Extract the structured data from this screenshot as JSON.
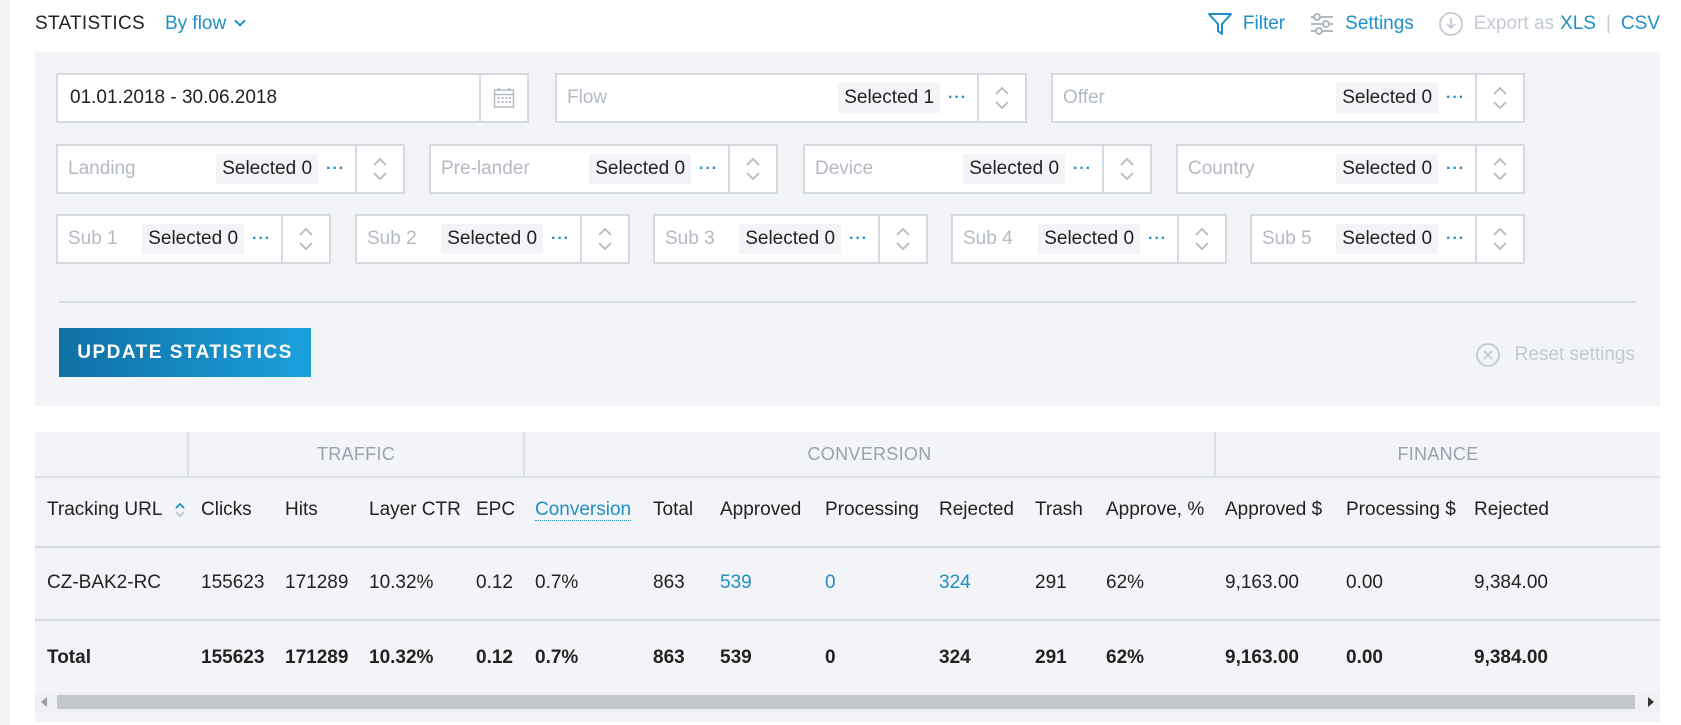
{
  "header": {
    "title": "STATISTICS",
    "group_by": "By flow",
    "filter_label": "Filter",
    "settings_label": "Settings",
    "export_label": "Export as",
    "export_xls": "XLS",
    "export_separator": "|",
    "export_csv": "CSV"
  },
  "filters": {
    "date_range": "01.01.2018 - 30.06.2018",
    "flow": {
      "placeholder": "Flow",
      "selected": "Selected 1"
    },
    "offer": {
      "placeholder": "Offer",
      "selected": "Selected 0"
    },
    "landing": {
      "placeholder": "Landing",
      "selected": "Selected 0"
    },
    "prelander": {
      "placeholder": "Pre-lander",
      "selected": "Selected 0"
    },
    "device": {
      "placeholder": "Device",
      "selected": "Selected 0"
    },
    "country": {
      "placeholder": "Country",
      "selected": "Selected 0"
    },
    "sub1": {
      "placeholder": "Sub 1",
      "selected": "Selected 0"
    },
    "sub2": {
      "placeholder": "Sub 2",
      "selected": "Selected 0"
    },
    "sub3": {
      "placeholder": "Sub 3",
      "selected": "Selected 0"
    },
    "sub4": {
      "placeholder": "Sub 4",
      "selected": "Selected 0"
    },
    "sub5": {
      "placeholder": "Sub 5",
      "selected": "Selected 0"
    },
    "more_glyph": "···",
    "update_label": "UPDATE STATISTICS",
    "reset_label": "Reset settings"
  },
  "table": {
    "groups": {
      "traffic": "TRAFFIC",
      "conversion": "CONVERSION",
      "finance": "FINANCE"
    },
    "columns": {
      "tracking_url": "Tracking URL",
      "clicks": "Clicks",
      "hits": "Hits",
      "layer_ctr": "Layer CTR",
      "epc": "EPC",
      "conversion": "Conversion",
      "total": "Total",
      "approved": "Approved",
      "processing": "Processing",
      "rejected": "Rejected",
      "trash": "Trash",
      "approve_pct": "Approve, %",
      "approved_usd": "Approved $",
      "processing_usd": "Processing $",
      "rejected_usd": "Rejected"
    },
    "rows": [
      {
        "tracking_url": "CZ-BAK2-RC",
        "clicks": "155623",
        "hits": "171289",
        "layer_ctr": "10.32%",
        "epc": "0.12",
        "conversion": "0.7%",
        "total": "863",
        "approved": "539",
        "processing": "0",
        "rejected": "324",
        "trash": "291",
        "approve_pct": "62%",
        "approved_usd": "9,163.00",
        "processing_usd": "0.00",
        "rejected_usd": "9,384.00"
      }
    ],
    "totals": {
      "label": "Total",
      "clicks": "155623",
      "hits": "171289",
      "layer_ctr": "10.32%",
      "epc": "0.12",
      "conversion": "0.7%",
      "total": "863",
      "approved": "539",
      "processing": "0",
      "rejected": "324",
      "trash": "291",
      "approve_pct": "62%",
      "approved_usd": "9,163.00",
      "processing_usd": "0.00",
      "rejected_usd": "9,384.00"
    }
  },
  "colors": {
    "accent": "#1f8fc7",
    "panel_bg": "#f2f4f7",
    "muted": "#c4cad3"
  },
  "icons": [
    "funnel-icon",
    "sliders-icon",
    "download-icon",
    "calendar-icon",
    "spinner-arrows-icon",
    "sort-icon",
    "close-circle-icon"
  ]
}
